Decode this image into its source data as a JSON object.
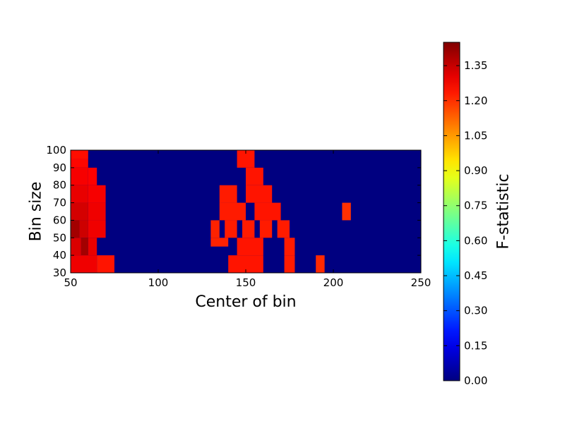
{
  "chart_data": {
    "type": "heatmap",
    "title": "",
    "xlabel": "Center of bin",
    "ylabel": "Bin size",
    "xlim": [
      50,
      250
    ],
    "ylim": [
      30,
      100
    ],
    "x_ticks": [
      50,
      100,
      150,
      200,
      250
    ],
    "y_ticks": [
      30,
      40,
      50,
      60,
      70,
      80,
      90,
      100
    ],
    "colorbar": {
      "label": "F-statistic",
      "range": [
        0,
        1.45
      ],
      "ticks": [
        "0.00",
        "0.15",
        "0.30",
        "0.45",
        "0.60",
        "0.75",
        "0.90",
        "1.05",
        "1.20",
        "1.35"
      ],
      "colormap": "jet"
    },
    "background_value": 0.0,
    "cells": [
      {
        "x0": 50,
        "x1": 60,
        "y0": 95,
        "y1": 100,
        "value": 1.25
      },
      {
        "x0": 50,
        "x1": 60,
        "y0": 90,
        "y1": 95,
        "value": 1.26
      },
      {
        "x0": 50,
        "x1": 60,
        "y0": 80,
        "y1": 90,
        "value": 1.28
      },
      {
        "x0": 60,
        "x1": 65,
        "y0": 80,
        "y1": 90,
        "value": 1.27
      },
      {
        "x0": 50,
        "x1": 60,
        "y0": 70,
        "y1": 80,
        "value": 1.3
      },
      {
        "x0": 60,
        "x1": 70,
        "y0": 70,
        "y1": 80,
        "value": 1.28
      },
      {
        "x0": 50,
        "x1": 60,
        "y0": 60,
        "y1": 70,
        "value": 1.33
      },
      {
        "x0": 60,
        "x1": 70,
        "y0": 60,
        "y1": 70,
        "value": 1.29
      },
      {
        "x0": 50,
        "x1": 55,
        "y0": 50,
        "y1": 60,
        "value": 1.4
      },
      {
        "x0": 55,
        "x1": 60,
        "y0": 50,
        "y1": 60,
        "value": 1.34
      },
      {
        "x0": 60,
        "x1": 70,
        "y0": 50,
        "y1": 60,
        "value": 1.29
      },
      {
        "x0": 50,
        "x1": 56,
        "y0": 40,
        "y1": 50,
        "value": 1.32
      },
      {
        "x0": 56,
        "x1": 60,
        "y0": 40,
        "y1": 50,
        "value": 1.4
      },
      {
        "x0": 60,
        "x1": 65,
        "y0": 40,
        "y1": 50,
        "value": 1.3
      },
      {
        "x0": 50,
        "x1": 65,
        "y0": 30,
        "y1": 40,
        "value": 1.29
      },
      {
        "x0": 65,
        "x1": 75,
        "y0": 30,
        "y1": 40,
        "value": 1.24
      },
      {
        "x0": 145,
        "x1": 155,
        "y0": 90,
        "y1": 100,
        "value": 1.24
      },
      {
        "x0": 150,
        "x1": 160,
        "y0": 80,
        "y1": 90,
        "value": 1.24
      },
      {
        "x0": 135,
        "x1": 145,
        "y0": 70,
        "y1": 80,
        "value": 1.23
      },
      {
        "x0": 150,
        "x1": 165,
        "y0": 70,
        "y1": 80,
        "value": 1.24
      },
      {
        "x0": 135,
        "x1": 150,
        "y0": 60,
        "y1": 70,
        "value": 1.23
      },
      {
        "x0": 155,
        "x1": 170,
        "y0": 60,
        "y1": 70,
        "value": 1.24
      },
      {
        "x0": 130,
        "x1": 135,
        "y0": 50,
        "y1": 60,
        "value": 1.22
      },
      {
        "x0": 138,
        "x1": 145,
        "y0": 50,
        "y1": 60,
        "value": 1.23
      },
      {
        "x0": 148,
        "x1": 155,
        "y0": 50,
        "y1": 60,
        "value": 1.23
      },
      {
        "x0": 158,
        "x1": 165,
        "y0": 50,
        "y1": 60,
        "value": 1.23
      },
      {
        "x0": 168,
        "x1": 175,
        "y0": 50,
        "y1": 60,
        "value": 1.23
      },
      {
        "x0": 130,
        "x1": 140,
        "y0": 45,
        "y1": 50,
        "value": 1.22
      },
      {
        "x0": 145,
        "x1": 160,
        "y0": 40,
        "y1": 50,
        "value": 1.24
      },
      {
        "x0": 172,
        "x1": 178,
        "y0": 40,
        "y1": 50,
        "value": 1.23
      },
      {
        "x0": 140,
        "x1": 160,
        "y0": 30,
        "y1": 40,
        "value": 1.24
      },
      {
        "x0": 172,
        "x1": 178,
        "y0": 30,
        "y1": 40,
        "value": 1.23
      },
      {
        "x0": 190,
        "x1": 195,
        "y0": 30,
        "y1": 40,
        "value": 1.21
      },
      {
        "x0": 205,
        "x1": 210,
        "y0": 60,
        "y1": 70,
        "value": 1.2
      }
    ]
  }
}
